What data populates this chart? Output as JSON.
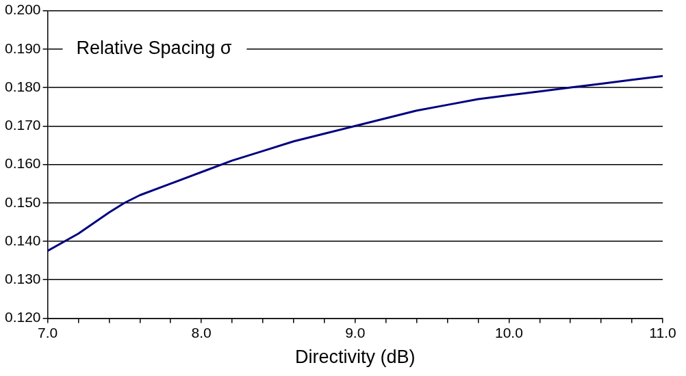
{
  "chart_data": {
    "type": "line",
    "title": "Relative Spacing σ",
    "xlabel": "Directivity (dB)",
    "series": [
      {
        "color": "#000080",
        "x": [
          7.0,
          7.2,
          7.4,
          7.5,
          7.6,
          7.8,
          8.0,
          8.2,
          8.4,
          8.6,
          8.8,
          9.0,
          9.2,
          9.4,
          9.6,
          9.8,
          10.0,
          10.2,
          10.4,
          10.6,
          10.8,
          11.0
        ],
        "values": [
          0.1375,
          0.142,
          0.1475,
          0.15,
          0.152,
          0.155,
          0.158,
          0.161,
          0.1635,
          0.166,
          0.168,
          0.17,
          0.172,
          0.174,
          0.1755,
          0.177,
          0.178,
          0.179,
          0.18,
          0.181,
          0.182,
          0.183
        ]
      }
    ],
    "xlim": [
      7.0,
      11.0
    ],
    "xticks": [
      {
        "value": 7.0,
        "label": "7.0"
      },
      {
        "value": 7.2,
        "label": null
      },
      {
        "value": 7.4,
        "label": null
      },
      {
        "value": 7.6,
        "label": null
      },
      {
        "value": 7.8,
        "label": null
      },
      {
        "value": 8.0,
        "label": "8.0"
      },
      {
        "value": 8.2,
        "label": null
      },
      {
        "value": 8.4,
        "label": null
      },
      {
        "value": 8.6,
        "label": null
      },
      {
        "value": 8.8,
        "label": null
      },
      {
        "value": 9.0,
        "label": "9.0"
      },
      {
        "value": 9.2,
        "label": null
      },
      {
        "value": 9.4,
        "label": null
      },
      {
        "value": 9.6,
        "label": null
      },
      {
        "value": 9.8,
        "label": null
      },
      {
        "value": 10.0,
        "label": "10.0"
      },
      {
        "value": 10.2,
        "label": null
      },
      {
        "value": 10.4,
        "label": null
      },
      {
        "value": 10.6,
        "label": null
      },
      {
        "value": 10.8,
        "label": null
      },
      {
        "value": 11.0,
        "label": "11.0"
      }
    ],
    "ylim": [
      0.12,
      0.2
    ],
    "yticks": [
      {
        "value": 0.12,
        "label": "0.120"
      },
      {
        "value": 0.13,
        "label": "0.130"
      },
      {
        "value": 0.14,
        "label": "0.140"
      },
      {
        "value": 0.15,
        "label": "0.150"
      },
      {
        "value": 0.16,
        "label": "0.160"
      },
      {
        "value": 0.17,
        "label": "0.170"
      },
      {
        "value": 0.18,
        "label": "0.180"
      },
      {
        "value": 0.19,
        "label": "0.190"
      },
      {
        "value": 0.2,
        "label": "0.200"
      }
    ],
    "grid": "y",
    "legend": false,
    "marker": "none",
    "line_style": "solid"
  }
}
